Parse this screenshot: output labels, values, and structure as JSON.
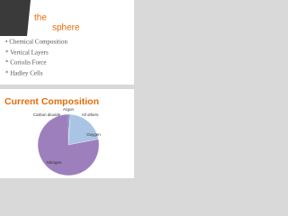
{
  "slide1": {
    "title_lines": [
      "the",
      "sphere"
    ],
    "bullets": [
      "• Chemical Composition",
      "* Vertical Layers",
      "* Coriolis Force",
      "* Hadley Cells"
    ]
  },
  "chart_data": {
    "type": "pie",
    "title": "Current Composition",
    "categories": [
      "Argon",
      "Carbon dioxide",
      "All others",
      "Oxygen",
      "Nitrogen"
    ],
    "values": [
      0.9,
      0.04,
      0.06,
      21,
      78
    ],
    "colors": [
      "#4f81bd",
      "#c0504d",
      "#9bbb59",
      "#a9c4e4",
      "#9d7fbd"
    ]
  }
}
